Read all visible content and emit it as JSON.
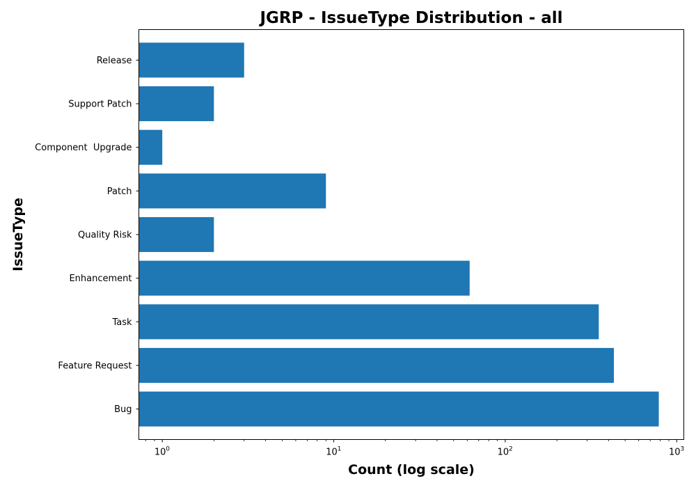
{
  "chart_data": {
    "type": "bar",
    "orientation": "horizontal",
    "title": "JGRP - IssueType Distribution - all",
    "xlabel": "Count (log scale)",
    "ylabel": "IssueType",
    "xscale": "log",
    "xlim": [
      0.73,
      1100
    ],
    "x_ticks": [
      {
        "base": "10",
        "exp": "0",
        "value": 1
      },
      {
        "base": "10",
        "exp": "1",
        "value": 10
      },
      {
        "base": "10",
        "exp": "2",
        "value": 100
      },
      {
        "base": "10",
        "exp": "3",
        "value": 1000
      }
    ],
    "categories": [
      "Bug",
      "Feature Request",
      "Task",
      "Enhancement",
      "Quality Risk",
      "Patch",
      "Component  Upgrade",
      "Support Patch",
      "Release"
    ],
    "values": [
      786,
      430,
      351,
      62,
      2,
      9,
      1,
      2,
      3
    ],
    "bar_color": "#1f77b4",
    "grid": false,
    "legend": "none"
  }
}
